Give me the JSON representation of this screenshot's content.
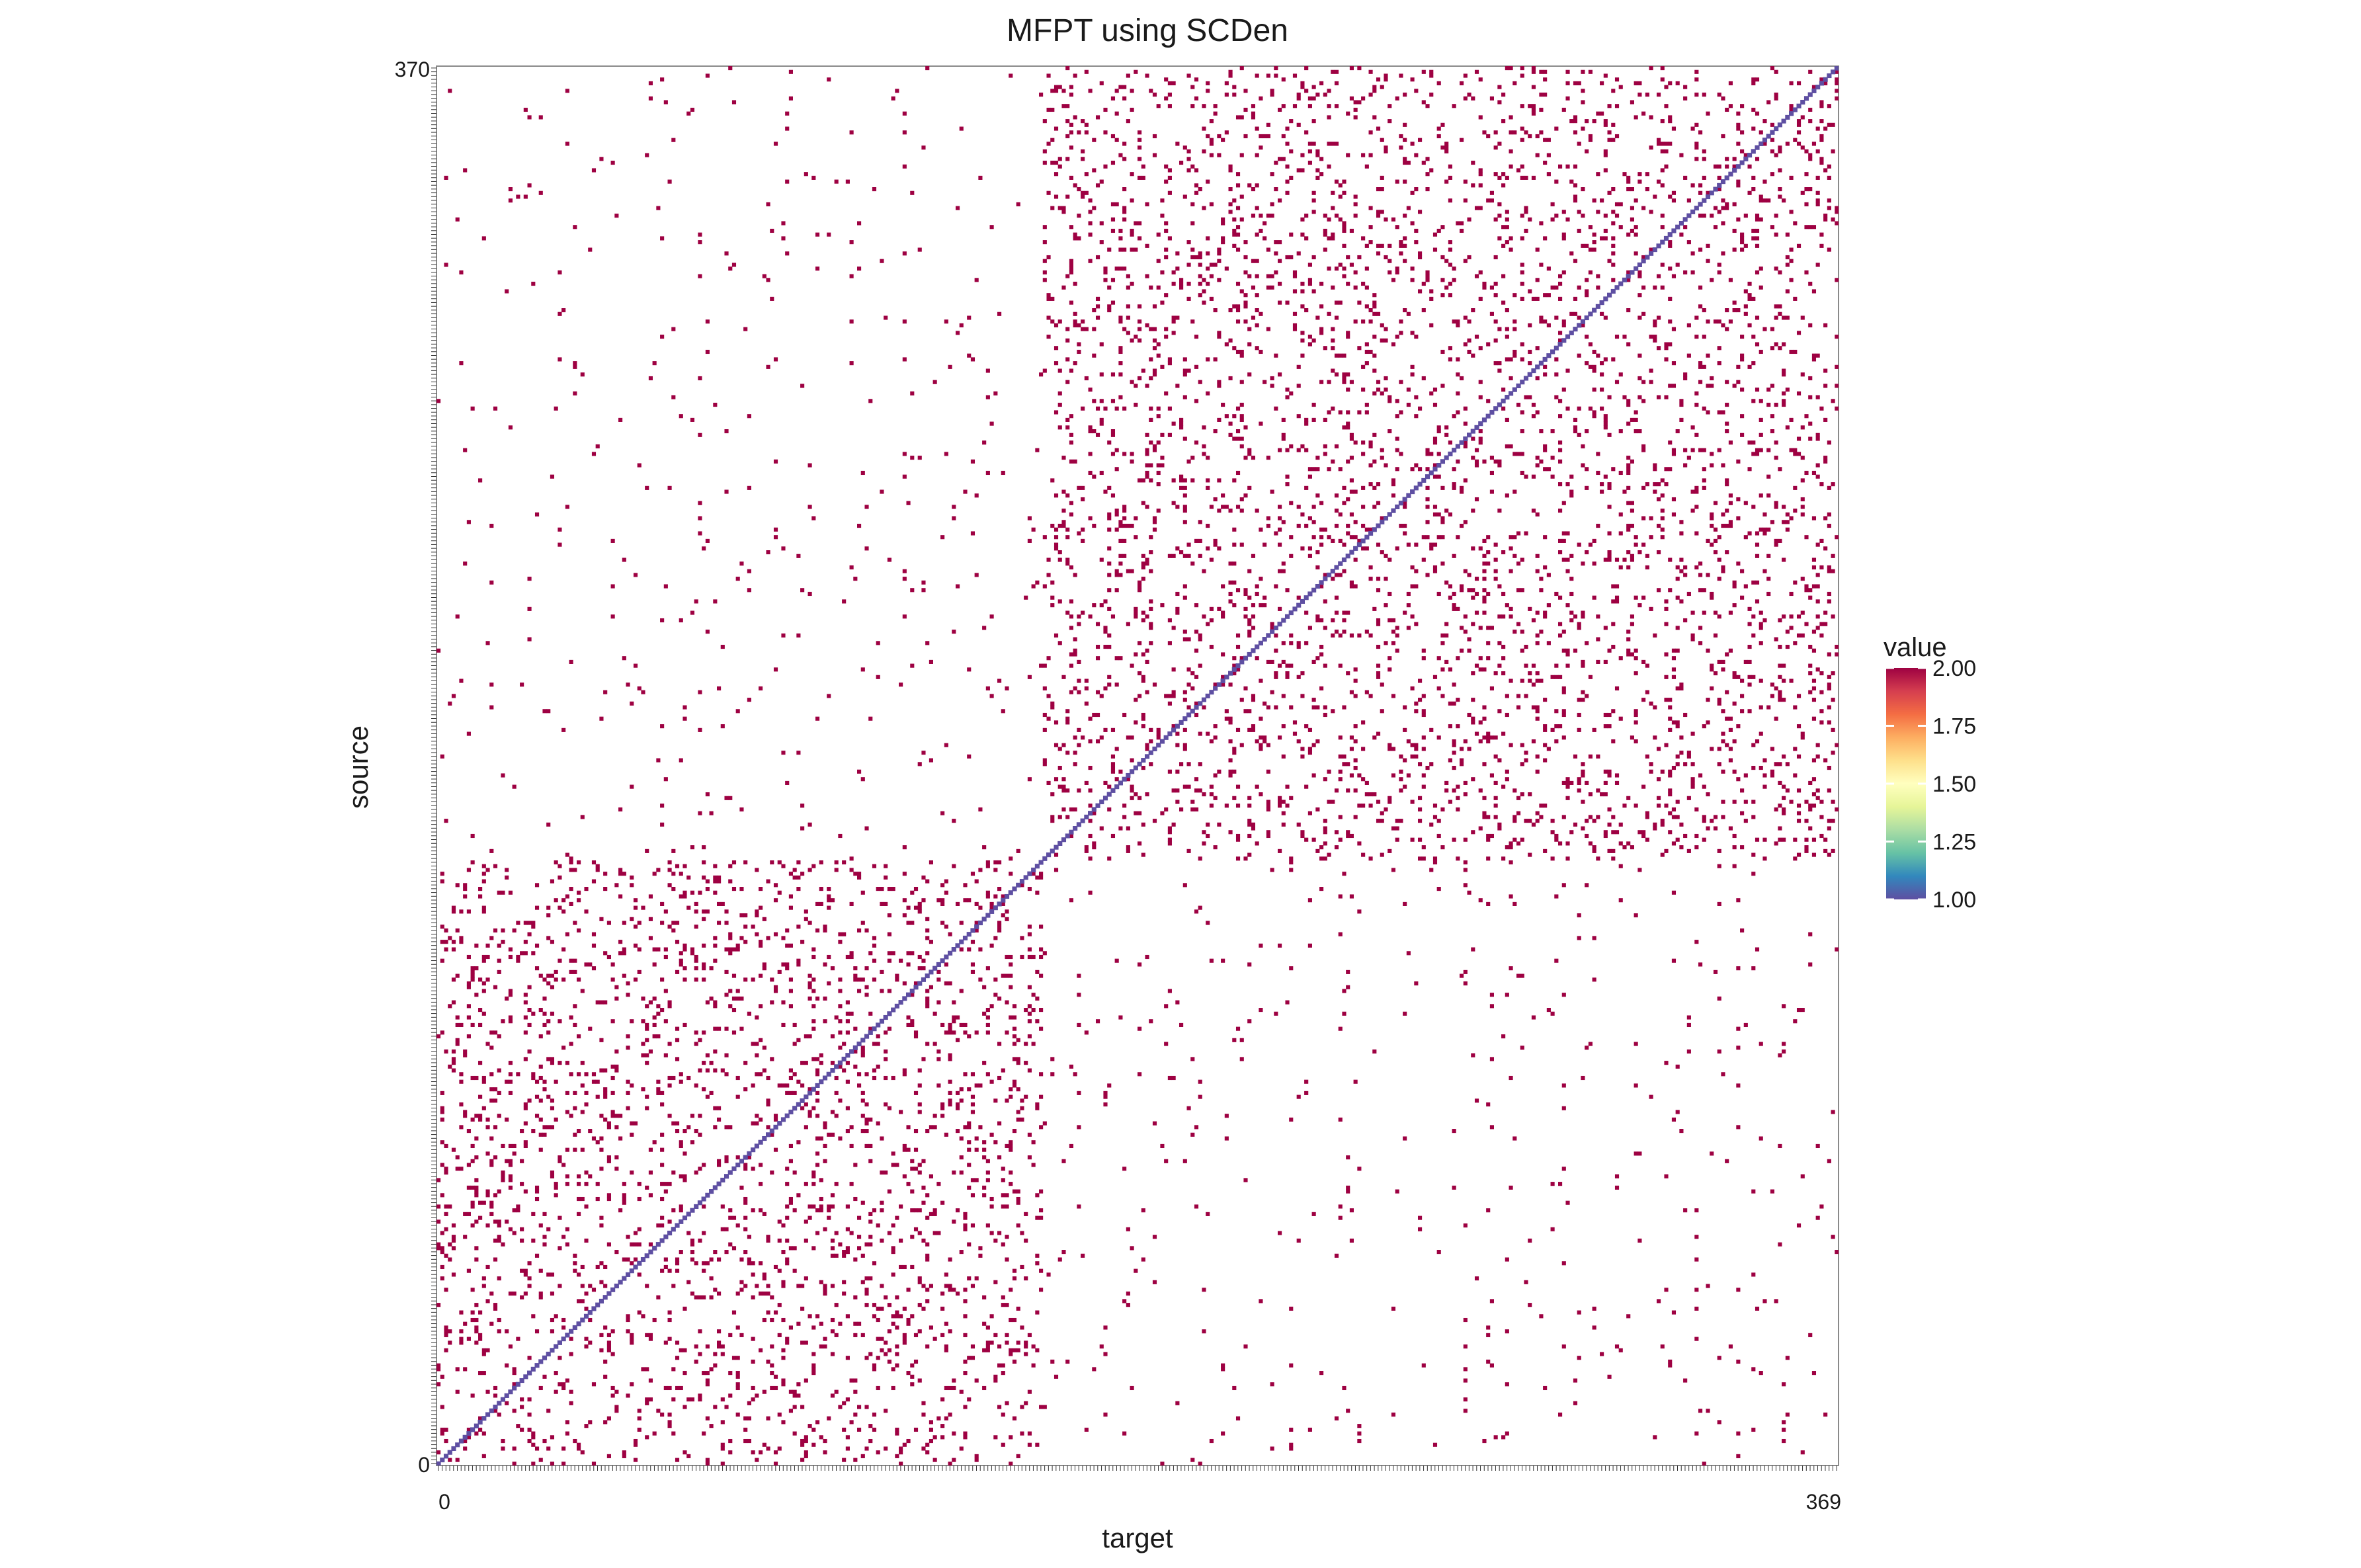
{
  "chart_data": {
    "type": "heatmap",
    "title": "MFPT using SCDen",
    "xlabel": "target",
    "ylabel": "source",
    "n_nodes": 370,
    "axis_range": [
      0,
      370
    ],
    "block_split": 160,
    "x_first_label": "0",
    "x_last_label": "369",
    "y_top_label": "370",
    "y_bottom_label": "0",
    "grid": false,
    "legend": {
      "title": "value",
      "position": "right",
      "min": 1.0,
      "max": 2.0,
      "ticks": [
        "2.00",
        "1.75",
        "1.50",
        "1.25",
        "1.00"
      ],
      "colors": [
        "#5e4fa2",
        "#3288bd",
        "#66c2a5",
        "#abdda4",
        "#e6f598",
        "#ffffbf",
        "#fee08b",
        "#fdae61",
        "#f46d43",
        "#d53e4f",
        "#9e0142"
      ]
    },
    "values": {
      "diagonal": 1.0,
      "off_diagonal_cells": 2.0,
      "empty": "NA"
    },
    "density": {
      "within_block_a": 0.085,
      "within_block_b": 0.085,
      "between_blocks": 0.009
    }
  }
}
